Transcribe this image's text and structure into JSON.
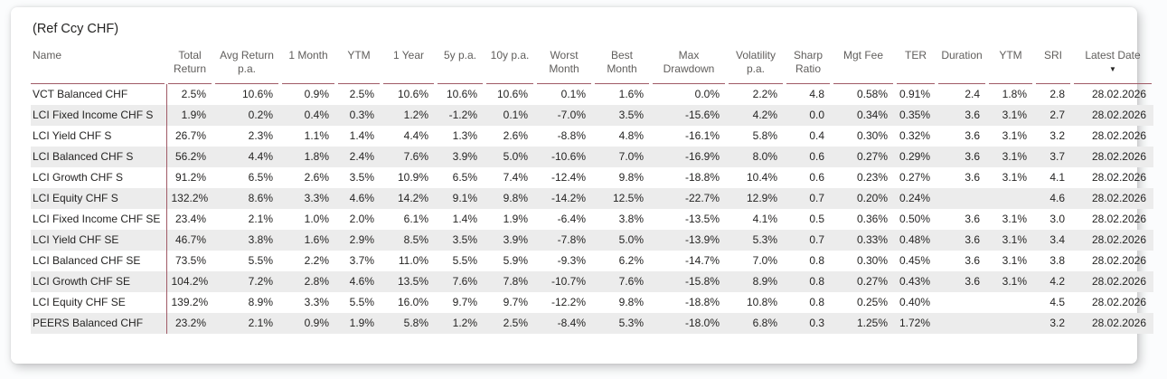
{
  "title": "(Ref Ccy CHF)",
  "colors": {
    "accent_line": "#a05a66",
    "row_stripe": "#ececec",
    "header_text": "#605e5c",
    "body_text": "#252423"
  },
  "table": {
    "sort_icon": "▼",
    "sorted_column": "latest-date",
    "sort_direction": "descending",
    "columns": [
      {
        "id": "name",
        "line1": "Name",
        "line2": ""
      },
      {
        "id": "total-return",
        "line1": "Total",
        "line2": "Return"
      },
      {
        "id": "avg-return-pa",
        "line1": "Avg Return",
        "line2": "p.a."
      },
      {
        "id": "1-month",
        "line1": "1 Month",
        "line2": ""
      },
      {
        "id": "ytm",
        "line1": "YTM",
        "line2": ""
      },
      {
        "id": "1-year",
        "line1": "1 Year",
        "line2": ""
      },
      {
        "id": "5y-pa",
        "line1": "5y p.a.",
        "line2": ""
      },
      {
        "id": "10y-pa",
        "line1": "10y p.a.",
        "line2": ""
      },
      {
        "id": "worst-month",
        "line1": "Worst",
        "line2": "Month"
      },
      {
        "id": "best-month",
        "line1": "Best",
        "line2": "Month"
      },
      {
        "id": "max-drawdown",
        "line1": "Max",
        "line2": "Drawdown"
      },
      {
        "id": "volatility-pa",
        "line1": "Volatility",
        "line2": "p.a."
      },
      {
        "id": "sharp-ratio",
        "line1": "Sharp",
        "line2": "Ratio"
      },
      {
        "id": "mgt-fee",
        "line1": "Mgt Fee",
        "line2": ""
      },
      {
        "id": "ter",
        "line1": "TER",
        "line2": ""
      },
      {
        "id": "duration",
        "line1": "Duration",
        "line2": ""
      },
      {
        "id": "ytm-2",
        "line1": "YTM",
        "line2": ""
      },
      {
        "id": "sri",
        "line1": "SRI",
        "line2": ""
      },
      {
        "id": "latest-date",
        "line1": "Latest Date",
        "line2": "",
        "sorted": true
      }
    ],
    "rows": [
      {
        "name": "VCT Balanced CHF",
        "cells": [
          "2.5%",
          "10.6%",
          "0.9%",
          "2.5%",
          "10.6%",
          "10.6%",
          "10.6%",
          "0.1%",
          "1.6%",
          "0.0%",
          "2.2%",
          "4.8",
          "0.58%",
          "0.91%",
          "2.4",
          "1.8%",
          "2.8",
          "28.02.2026"
        ]
      },
      {
        "name": "LCI Fixed Income CHF S",
        "cells": [
          "1.9%",
          "0.2%",
          "0.4%",
          "0.3%",
          "1.2%",
          "-1.2%",
          "0.1%",
          "-7.0%",
          "3.5%",
          "-15.6%",
          "4.2%",
          "0.0",
          "0.34%",
          "0.35%",
          "3.6",
          "3.1%",
          "2.7",
          "28.02.2026"
        ]
      },
      {
        "name": "LCI Yield CHF S",
        "cells": [
          "26.7%",
          "2.3%",
          "1.1%",
          "1.4%",
          "4.4%",
          "1.3%",
          "2.6%",
          "-8.8%",
          "4.8%",
          "-16.1%",
          "5.8%",
          "0.4",
          "0.30%",
          "0.32%",
          "3.6",
          "3.1%",
          "3.2",
          "28.02.2026"
        ]
      },
      {
        "name": "LCI Balanced CHF S",
        "cells": [
          "56.2%",
          "4.4%",
          "1.8%",
          "2.4%",
          "7.6%",
          "3.9%",
          "5.0%",
          "-10.6%",
          "7.0%",
          "-16.9%",
          "8.0%",
          "0.6",
          "0.27%",
          "0.29%",
          "3.6",
          "3.1%",
          "3.7",
          "28.02.2026"
        ]
      },
      {
        "name": "LCI Growth CHF S",
        "cells": [
          "91.2%",
          "6.5%",
          "2.6%",
          "3.5%",
          "10.9%",
          "6.5%",
          "7.4%",
          "-12.4%",
          "9.8%",
          "-18.8%",
          "10.4%",
          "0.6",
          "0.23%",
          "0.27%",
          "3.6",
          "3.1%",
          "4.1",
          "28.02.2026"
        ]
      },
      {
        "name": "LCI Equity CHF S",
        "cells": [
          "132.2%",
          "8.6%",
          "3.3%",
          "4.6%",
          "14.2%",
          "9.1%",
          "9.8%",
          "-14.2%",
          "12.5%",
          "-22.7%",
          "12.9%",
          "0.7",
          "0.20%",
          "0.24%",
          "",
          "",
          "4.6",
          "28.02.2026"
        ]
      },
      {
        "name": "LCI Fixed Income CHF SE",
        "cells": [
          "23.4%",
          "2.1%",
          "1.0%",
          "2.0%",
          "6.1%",
          "1.4%",
          "1.9%",
          "-6.4%",
          "3.8%",
          "-13.5%",
          "4.1%",
          "0.5",
          "0.36%",
          "0.50%",
          "3.6",
          "3.1%",
          "3.0",
          "28.02.2026"
        ]
      },
      {
        "name": "LCI Yield CHF SE",
        "cells": [
          "46.7%",
          "3.8%",
          "1.6%",
          "2.9%",
          "8.5%",
          "3.5%",
          "3.9%",
          "-7.8%",
          "5.0%",
          "-13.9%",
          "5.3%",
          "0.7",
          "0.33%",
          "0.48%",
          "3.6",
          "3.1%",
          "3.4",
          "28.02.2026"
        ]
      },
      {
        "name": "LCI Balanced CHF SE",
        "cells": [
          "73.5%",
          "5.5%",
          "2.2%",
          "3.7%",
          "11.0%",
          "5.5%",
          "5.9%",
          "-9.3%",
          "6.2%",
          "-14.7%",
          "7.0%",
          "0.8",
          "0.30%",
          "0.45%",
          "3.6",
          "3.1%",
          "3.8",
          "28.02.2026"
        ]
      },
      {
        "name": "LCI Growth CHF SE",
        "cells": [
          "104.2%",
          "7.2%",
          "2.8%",
          "4.6%",
          "13.5%",
          "7.6%",
          "7.8%",
          "-10.7%",
          "7.6%",
          "-15.8%",
          "8.9%",
          "0.8",
          "0.27%",
          "0.43%",
          "3.6",
          "3.1%",
          "4.2",
          "28.02.2026"
        ]
      },
      {
        "name": "LCI Equity CHF SE",
        "cells": [
          "139.2%",
          "8.9%",
          "3.3%",
          "5.5%",
          "16.0%",
          "9.7%",
          "9.7%",
          "-12.2%",
          "9.8%",
          "-18.8%",
          "10.8%",
          "0.8",
          "0.25%",
          "0.40%",
          "",
          "",
          "4.5",
          "28.02.2026"
        ]
      },
      {
        "name": "PEERS Balanced CHF",
        "cells": [
          "23.2%",
          "2.1%",
          "0.9%",
          "1.9%",
          "5.8%",
          "1.2%",
          "2.5%",
          "-8.4%",
          "5.3%",
          "-18.0%",
          "6.8%",
          "0.3",
          "1.25%",
          "1.72%",
          "",
          "",
          "3.2",
          "28.02.2026"
        ]
      }
    ]
  }
}
